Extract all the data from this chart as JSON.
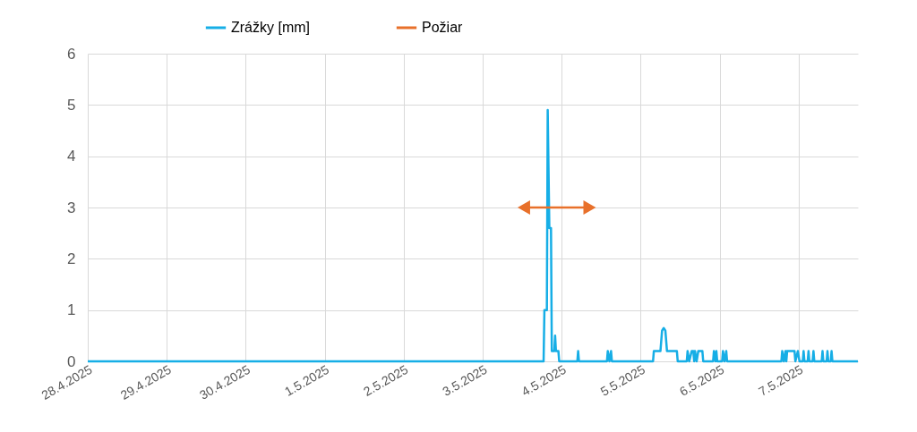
{
  "chart_data": {
    "type": "line",
    "legend": "top",
    "grid": true,
    "line_style": "solid",
    "marker": "none",
    "xlim": [
      "2025-04-28",
      "2025-05-07T18:00"
    ],
    "xticks": [
      {
        "value": "2025-04-28",
        "label": "28.4.2025"
      },
      {
        "value": "2025-04-29",
        "label": "29.4.2025"
      },
      {
        "value": "2025-04-30",
        "label": "30.4.2025"
      },
      {
        "value": "2025-05-01",
        "label": "1.5.2025"
      },
      {
        "value": "2025-05-02",
        "label": "2.5.2025"
      },
      {
        "value": "2025-05-03",
        "label": "3.5.2025"
      },
      {
        "value": "2025-05-04",
        "label": "4.5.2025"
      },
      {
        "value": "2025-05-05",
        "label": "5.5.2025"
      },
      {
        "value": "2025-05-06",
        "label": "6.5.2025"
      },
      {
        "value": "2025-05-07",
        "label": "7.5.2025"
      }
    ],
    "ylim": [
      0,
      6
    ],
    "yticks": [
      0,
      1,
      2,
      3,
      4,
      5,
      6
    ],
    "series": [
      {
        "name": "Zrážky [mm]",
        "color": "#16aee6",
        "type": "line",
        "x": [
          "2025-04-28T00:00",
          "2025-05-03T18:30",
          "2025-05-03T18:45",
          "2025-05-03T19:30",
          "2025-05-03T19:45",
          "2025-05-03T20:15",
          "2025-05-03T20:45",
          "2025-05-03T21:00",
          "2025-05-03T21:45",
          "2025-05-03T22:00",
          "2025-05-03T22:15",
          "2025-05-03T23:00",
          "2025-05-03T23:15",
          "2025-05-04T04:45",
          "2025-05-04T05:00",
          "2025-05-04T05:15",
          "2025-05-04T13:45",
          "2025-05-04T14:00",
          "2025-05-04T14:30",
          "2025-05-04T15:00",
          "2025-05-04T15:15",
          "2025-05-05T03:45",
          "2025-05-05T04:00",
          "2025-05-05T06:00",
          "2025-05-05T06:30",
          "2025-05-05T07:00",
          "2025-05-05T07:30",
          "2025-05-05T08:00",
          "2025-05-05T11:00",
          "2025-05-05T11:15",
          "2025-05-05T14:00",
          "2025-05-05T14:15",
          "2025-05-05T14:45",
          "2025-05-05T15:30",
          "2025-05-05T16:00",
          "2025-05-05T16:15",
          "2025-05-05T16:30",
          "2025-05-05T17:00",
          "2025-05-05T17:30",
          "2025-05-05T18:45",
          "2025-05-05T19:00",
          "2025-05-05T22:00",
          "2025-05-05T22:15",
          "2025-05-05T22:45",
          "2025-05-05T23:00",
          "2025-05-05T23:15",
          "2025-05-06T00:45",
          "2025-05-06T01:00",
          "2025-05-06T01:30",
          "2025-05-06T02:00",
          "2025-05-06T02:15",
          "2025-05-06T18:45",
          "2025-05-06T19:00",
          "2025-05-06T19:30",
          "2025-05-06T20:00",
          "2025-05-06T20:15",
          "2025-05-06T20:30",
          "2025-05-06T22:45",
          "2025-05-06T23:00",
          "2025-05-06T23:45",
          "2025-05-07T00:15",
          "2025-05-07T01:15",
          "2025-05-07T01:30",
          "2025-05-07T01:45",
          "2025-05-07T02:45",
          "2025-05-07T03:00",
          "2025-05-07T03:15",
          "2025-05-07T04:15",
          "2025-05-07T04:30",
          "2025-05-07T04:45",
          "2025-05-07T07:00",
          "2025-05-07T07:15",
          "2025-05-07T07:30",
          "2025-05-07T08:30",
          "2025-05-07T08:45",
          "2025-05-07T09:00",
          "2025-05-07T09:45",
          "2025-05-07T10:00",
          "2025-05-07T10:15",
          "2025-05-07T18:00"
        ],
        "values": [
          0,
          0,
          1.0,
          1.0,
          4.9,
          2.6,
          2.6,
          0.2,
          0.2,
          0.5,
          0.2,
          0.2,
          0,
          0,
          0.2,
          0,
          0,
          0.2,
          0,
          0.2,
          0,
          0,
          0.2,
          0.2,
          0.6,
          0.65,
          0.6,
          0.2,
          0.2,
          0,
          0,
          0.2,
          0,
          0.2,
          0.2,
          0,
          0.2,
          0,
          0.2,
          0.2,
          0,
          0,
          0.2,
          0,
          0.2,
          0,
          0,
          0.2,
          0,
          0.2,
          0,
          0,
          0.2,
          0,
          0.2,
          0,
          0.2,
          0.2,
          0,
          0.2,
          0,
          0,
          0.2,
          0,
          0,
          0.2,
          0,
          0,
          0.2,
          0,
          0,
          0.2,
          0,
          0,
          0.2,
          0,
          0,
          0.2,
          0,
          0
        ]
      },
      {
        "name": "Požiar",
        "color": "#e8702a",
        "type": "line",
        "marker": "triangle",
        "x": [
          "2025-05-03T12:30",
          "2025-05-04T08:30"
        ],
        "values": [
          3,
          3
        ]
      }
    ]
  }
}
